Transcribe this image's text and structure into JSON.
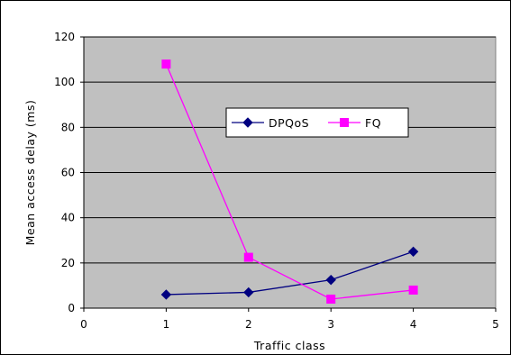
{
  "chart_data": {
    "type": "line",
    "xlabel": "Traffic class",
    "ylabel": "Mean access delay (ms)",
    "xlim": [
      0,
      5
    ],
    "ylim": [
      0,
      120
    ],
    "x_ticks": [
      "0",
      "1",
      "2",
      "3",
      "4",
      "5"
    ],
    "y_ticks": [
      "0",
      "20",
      "40",
      "60",
      "80",
      "100",
      "120"
    ],
    "grid": true,
    "legend_position": "center-right",
    "plot_background": "#c0c0c0",
    "series": [
      {
        "name": "DPQoS",
        "color": "#000080",
        "marker": "diamond",
        "points": [
          {
            "x": 1,
            "y": 6
          },
          {
            "x": 2,
            "y": 7
          },
          {
            "x": 3,
            "y": 12.5
          },
          {
            "x": 4,
            "y": 25
          }
        ]
      },
      {
        "name": "FQ",
        "color": "#ff00ff",
        "marker": "square",
        "points": [
          {
            "x": 1,
            "y": 108
          },
          {
            "x": 2,
            "y": 22.5
          },
          {
            "x": 3,
            "y": 4
          },
          {
            "x": 4,
            "y": 8
          }
        ]
      }
    ]
  }
}
